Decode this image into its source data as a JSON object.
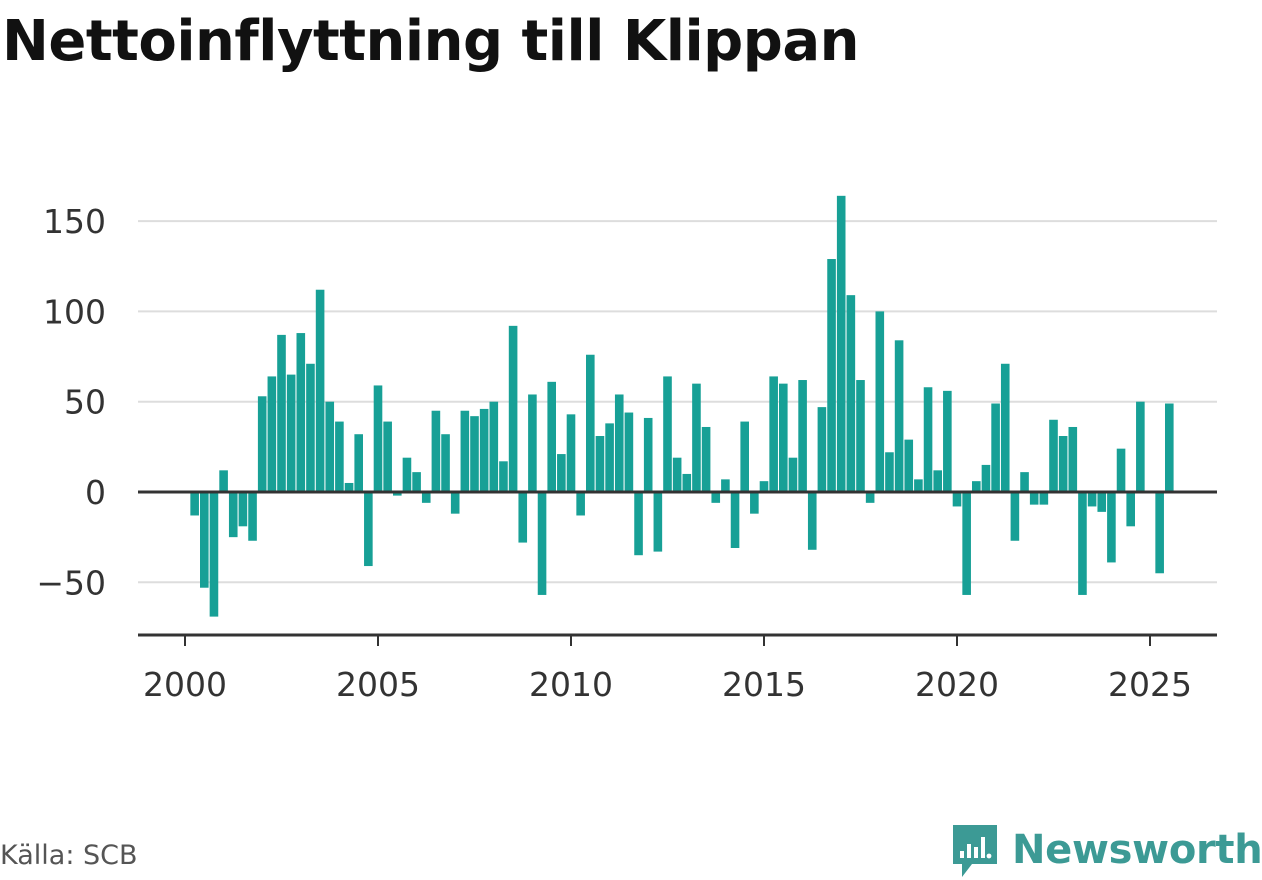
{
  "title": "Nettoinflyttning till Klippan",
  "source": "Källa: SCB",
  "brand": {
    "name": "Newsworthy",
    "icon": "newsworthy-logo-icon",
    "color": "#3c9a95"
  },
  "colors": {
    "bar": "#17a096",
    "grid": "#dddddd",
    "axis": "#333333"
  },
  "chart_data": {
    "type": "bar",
    "title": "Nettoinflyttning till Klippan",
    "xlabel": "",
    "ylabel": "",
    "x_ticks": [
      2000,
      2005,
      2010,
      2015,
      2020,
      2025
    ],
    "y_ticks": [
      150,
      100,
      50,
      0,
      -50
    ],
    "y_tick_labels": [
      "150",
      "100",
      "50",
      "0",
      "−50"
    ],
    "xlim": [
      1998.7,
      2026.7
    ],
    "ylim": [
      -80,
      165
    ],
    "grid": true,
    "values_unit": "quarterly",
    "series": [
      {
        "values": [
          -13,
          -53,
          -69,
          12,
          -25,
          -19,
          -27,
          53,
          64,
          87,
          65,
          88,
          71,
          112,
          50,
          39,
          5,
          32,
          -41,
          59,
          39,
          -2,
          19,
          11,
          -6,
          45,
          32,
          -12,
          45,
          42,
          46,
          50,
          17,
          92,
          -28,
          54,
          -57,
          61,
          21,
          43,
          -13,
          76,
          31,
          38,
          54,
          44,
          -35,
          41,
          -33,
          64,
          19,
          10,
          60,
          36,
          -6,
          7,
          -31,
          39,
          -12,
          6,
          64,
          60,
          19,
          62,
          -32,
          47,
          129,
          164,
          109,
          62,
          -6,
          100,
          22,
          84,
          29,
          7,
          58,
          12,
          56,
          -8,
          -57,
          6,
          15,
          49,
          71,
          -27,
          11,
          -7,
          -7,
          40,
          31,
          36,
          -57,
          -8,
          -11,
          -39,
          24,
          -19,
          50,
          0,
          -45,
          49
        ]
      }
    ]
  }
}
